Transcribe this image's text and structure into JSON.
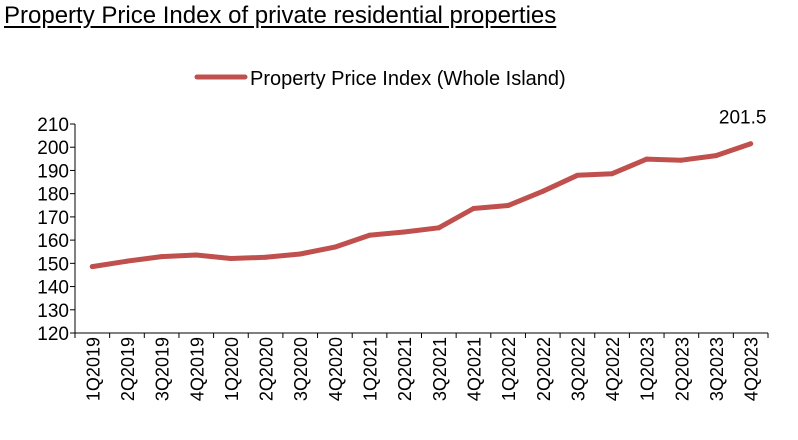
{
  "title": "Property Price Index of private residential properties",
  "colors": {
    "series": "#c0504d",
    "axis": "#000000"
  },
  "chart_data": {
    "type": "line",
    "title": "Property Price Index of private residential properties",
    "categories": [
      "1Q2019",
      "2Q2019",
      "3Q2019",
      "4Q2019",
      "1Q2020",
      "2Q2020",
      "3Q2020",
      "4Q2020",
      "1Q2021",
      "2Q2021",
      "3Q2021",
      "4Q2021",
      "1Q2022",
      "2Q2022",
      "3Q2022",
      "4Q2022",
      "1Q2023",
      "2Q2023",
      "3Q2023",
      "4Q2023"
    ],
    "series": [
      {
        "name": "Property Price Index (Whole Island)",
        "values": [
          148.6,
          150.9,
          152.9,
          153.6,
          152.1,
          152.6,
          154.0,
          157.0,
          162.1,
          163.5,
          165.3,
          173.6,
          174.9,
          181.0,
          187.9,
          188.6,
          194.9,
          194.4,
          196.4,
          201.5
        ]
      }
    ],
    "data_labels": [
      {
        "index": 19,
        "text": "201.5"
      }
    ],
    "yticks": [
      "120",
      "130",
      "140",
      "150",
      "160",
      "170",
      "180",
      "190",
      "200",
      "210"
    ],
    "ylim": [
      120,
      210
    ],
    "xlabel": "",
    "ylabel": "",
    "grid": false,
    "legend": "top-center"
  }
}
